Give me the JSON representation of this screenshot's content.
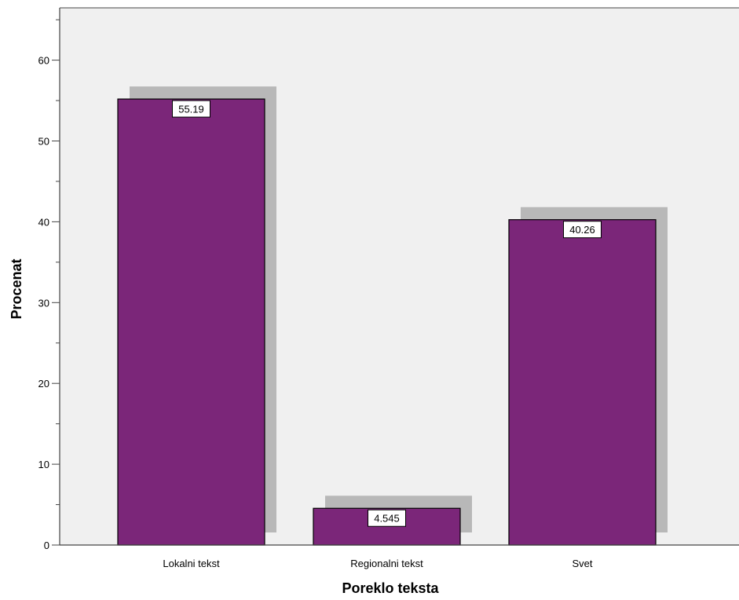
{
  "chart_data": {
    "type": "bar",
    "categories": [
      "Lokalni tekst",
      "Regionalni tekst",
      "Svet"
    ],
    "values": [
      55.19,
      4.545,
      40.26
    ],
    "value_labels": [
      "55.19",
      "4.545",
      "40.26"
    ],
    "title": "",
    "xlabel": "Poreklo teksta",
    "ylabel": "Procenat",
    "ylim": [
      0,
      66
    ],
    "yticks": [
      0,
      10,
      20,
      30,
      40,
      50,
      60
    ],
    "grid": false,
    "bar_style": "3d-shadow",
    "colors": {
      "bar": "#7b2679",
      "shadow": "#b8b8b8",
      "plot_background": "#f0f0f0",
      "axis": "#444444",
      "label_box": "#ffffff"
    }
  }
}
